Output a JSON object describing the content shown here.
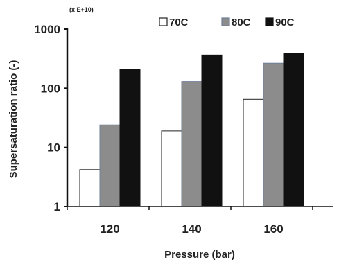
{
  "chart_data": {
    "type": "bar",
    "title": "",
    "multiplier_label": "(x E+10)",
    "xlabel": "Pressure (bar)",
    "ylabel": "Supersaturation ratio (-)",
    "y_scale": "log",
    "ylim": [
      1,
      1000
    ],
    "y_ticks": [
      "1",
      "10",
      "100",
      "1000"
    ],
    "categories": [
      "120",
      "140",
      "160"
    ],
    "series": [
      {
        "name": "70C",
        "color": "#ffffff",
        "values": [
          4.2,
          19,
          65
        ]
      },
      {
        "name": "80C",
        "color": "#8c8c8c",
        "values": [
          24,
          130,
          265
        ]
      },
      {
        "name": "90C",
        "color": "#111111",
        "values": [
          210,
          365,
          390
        ]
      }
    ],
    "grid": false,
    "legend": "top"
  }
}
